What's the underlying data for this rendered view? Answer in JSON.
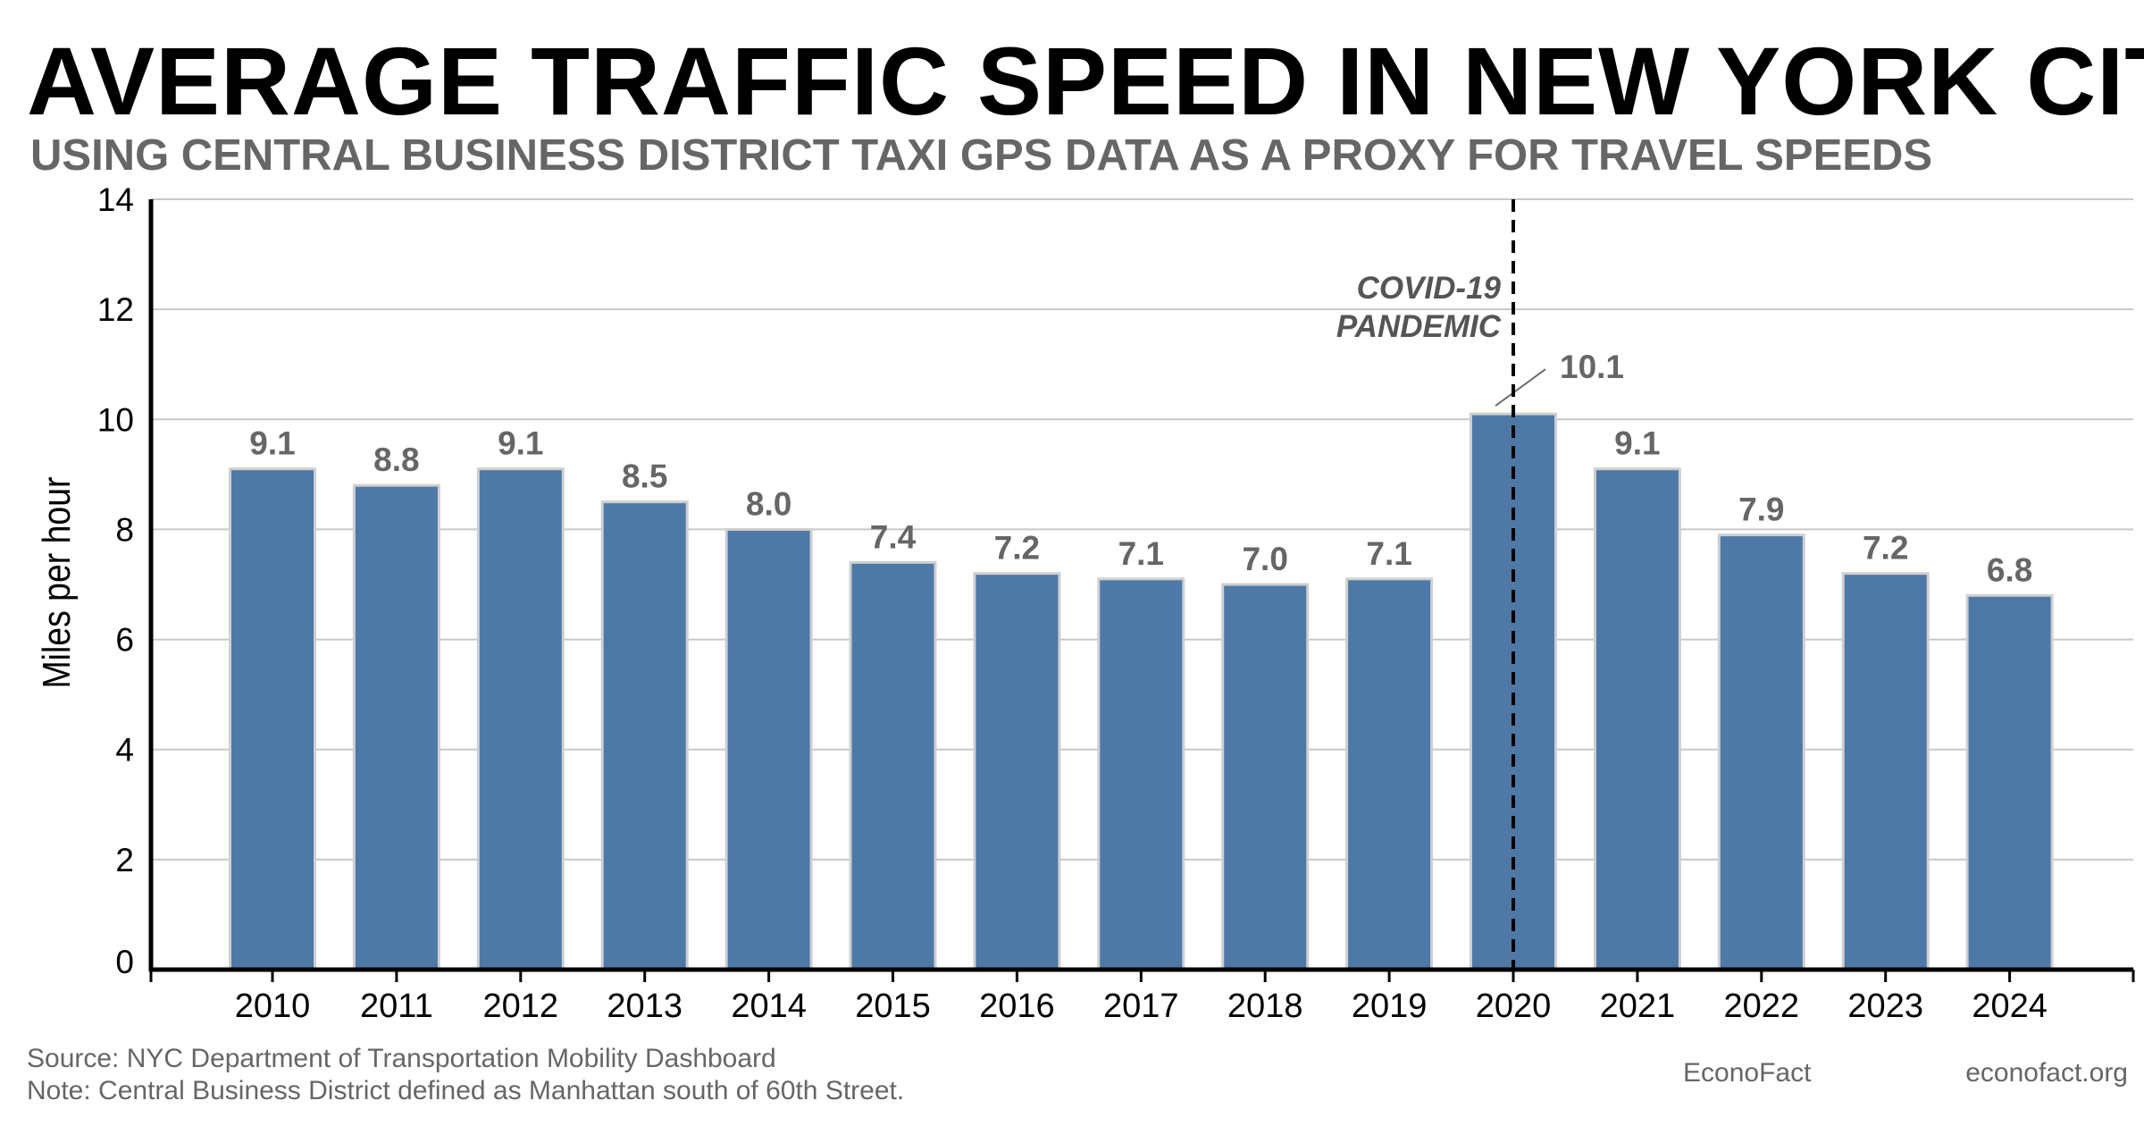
{
  "title": "AVERAGE TRAFFIC SPEED IN NEW YORK CITY",
  "subtitle": "USING CENTRAL BUSINESS DISTRICT TAXI GPS DATA AS A PROXY FOR TRAVEL SPEEDS",
  "chart_data": {
    "type": "bar",
    "categories": [
      "2010",
      "2011",
      "2012",
      "2013",
      "2014",
      "2015",
      "2016",
      "2017",
      "2018",
      "2019",
      "2020",
      "2021",
      "2022",
      "2023",
      "2024"
    ],
    "values": [
      9.1,
      8.8,
      9.1,
      8.5,
      8.0,
      7.4,
      7.2,
      7.1,
      7.0,
      7.1,
      10.1,
      9.1,
      7.9,
      7.2,
      6.8
    ],
    "value_labels": [
      "9.1",
      "8.8",
      "9.1",
      "8.5",
      "8.0",
      "7.4",
      "7.2",
      "7.1",
      "7.0",
      "7.1",
      "10.1",
      "9.1",
      "7.9",
      "7.2",
      "6.8"
    ],
    "xlabel": "",
    "ylabel": "Miles per hour",
    "ylim": [
      0,
      14
    ],
    "yticks": [
      0,
      2,
      4,
      6,
      8,
      10,
      12,
      14
    ],
    "grid": true,
    "bar_color": "#4e79a7",
    "annotation": {
      "category": "2020",
      "lines": [
        "COVID-19",
        "PANDEMIC"
      ],
      "style": "dashed vertical line"
    }
  },
  "footer": {
    "source": "Source: NYC Department of Transportation Mobility Dashboard",
    "note": "Note: Central Business District defined as Manhattan south of 60th Street.",
    "brand": "EconoFact",
    "url": "econofact.org"
  }
}
